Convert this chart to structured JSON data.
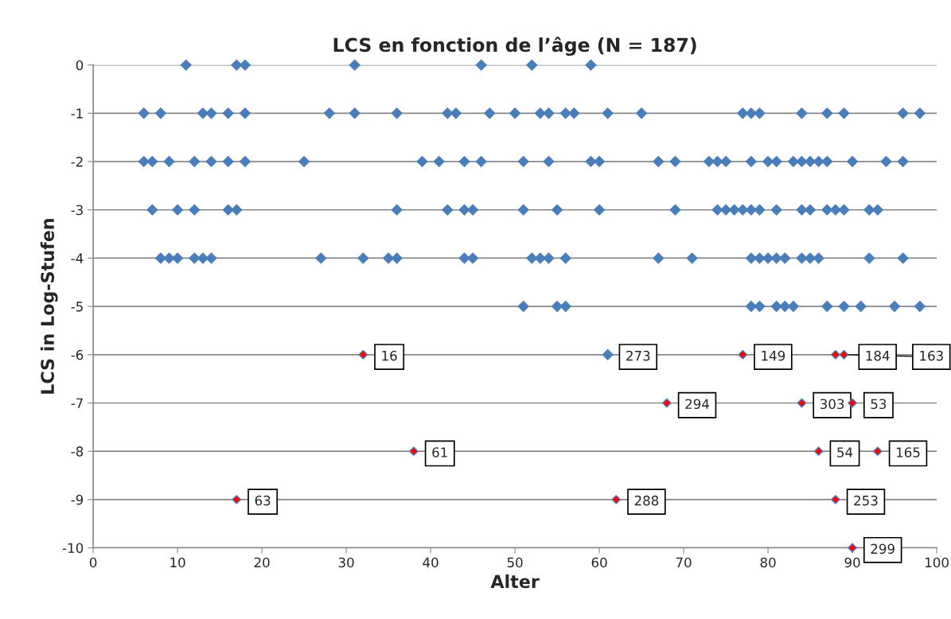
{
  "chart_data": {
    "type": "scatter",
    "title": "LCS en fonction de l’âge (N = 187)",
    "xlabel": "Alter",
    "ylabel": "LCS in Log-Stufen",
    "marker": "diamond",
    "grid": "y",
    "xlim": [
      0,
      100
    ],
    "xticks": [
      0,
      10,
      20,
      30,
      40,
      50,
      60,
      70,
      80,
      90,
      100
    ],
    "ylim": [
      -10,
      0
    ],
    "yticks": [
      0,
      -1,
      -2,
      -3,
      -4,
      -5,
      -6,
      -7,
      -8,
      -9,
      -10
    ],
    "series": [
      {
        "color": "#4a7ebb",
        "x": [
          11,
          17,
          18,
          31,
          46,
          52,
          59,
          6,
          8,
          13,
          14,
          16,
          18,
          28,
          31,
          36,
          42,
          43,
          47,
          50,
          53,
          54,
          56,
          57,
          61,
          65,
          77,
          78,
          79,
          84,
          87,
          89,
          96,
          98,
          6,
          7,
          9,
          12,
          14,
          16,
          18,
          25,
          39,
          41,
          44,
          46,
          51,
          54,
          59,
          60,
          67,
          69,
          73,
          74,
          75,
          78,
          80,
          81,
          83,
          84,
          85,
          86,
          87,
          90,
          94,
          96,
          7,
          10,
          12,
          16,
          17,
          36,
          42,
          44,
          45,
          51,
          55,
          60,
          69,
          74,
          75,
          76,
          77,
          78,
          79,
          81,
          84,
          85,
          87,
          88,
          89,
          92,
          93,
          8,
          9,
          10,
          12,
          13,
          14,
          27,
          32,
          35,
          36,
          44,
          45,
          52,
          53,
          54,
          56,
          67,
          71,
          78,
          79,
          80,
          81,
          82,
          84,
          85,
          86,
          92,
          96,
          51,
          55,
          56,
          78,
          79,
          81,
          82,
          83,
          87,
          89,
          91,
          95,
          98,
          61
        ],
        "values": [
          0,
          0,
          0,
          0,
          0,
          0,
          0,
          -1,
          -1,
          -1,
          -1,
          -1,
          -1,
          -1,
          -1,
          -1,
          -1,
          -1,
          -1,
          -1,
          -1,
          -1,
          -1,
          -1,
          -1,
          -1,
          -1,
          -1,
          -1,
          -1,
          -1,
          -1,
          -1,
          -1,
          -2,
          -2,
          -2,
          -2,
          -2,
          -2,
          -2,
          -2,
          -2,
          -2,
          -2,
          -2,
          -2,
          -2,
          -2,
          -2,
          -2,
          -2,
          -2,
          -2,
          -2,
          -2,
          -2,
          -2,
          -2,
          -2,
          -2,
          -2,
          -2,
          -2,
          -2,
          -2,
          -3,
          -3,
          -3,
          -3,
          -3,
          -3,
          -3,
          -3,
          -3,
          -3,
          -3,
          -3,
          -3,
          -3,
          -3,
          -3,
          -3,
          -3,
          -3,
          -3,
          -3,
          -3,
          -3,
          -3,
          -3,
          -3,
          -3,
          -4,
          -4,
          -4,
          -4,
          -4,
          -4,
          -4,
          -4,
          -4,
          -4,
          -4,
          -4,
          -4,
          -4,
          -4,
          -4,
          -4,
          -4,
          -4,
          -4,
          -4,
          -4,
          -4,
          -4,
          -4,
          -4,
          -4,
          -4,
          -5,
          -5,
          -5,
          -5,
          -5,
          -5,
          -5,
          -5,
          -5,
          -5,
          -5,
          -5,
          -5,
          -6
        ]
      },
      {
        "color": "#ff0000",
        "x": [
          32,
          77,
          88,
          89,
          68,
          84,
          90,
          38,
          86,
          93,
          17,
          62,
          88,
          90
        ],
        "values": [
          -6,
          -6,
          -6,
          -6,
          -7,
          -7,
          -7,
          -8,
          -8,
          -8,
          -9,
          -9,
          -9,
          -10
        ]
      }
    ],
    "annotations": [
      {
        "text": "16",
        "x": 32,
        "y": -6
      },
      {
        "text": "273",
        "x": 61,
        "y": -6
      },
      {
        "text": "149",
        "x": 77,
        "y": -6
      },
      {
        "text": "184",
        "x": 88,
        "y": -6
      },
      {
        "text": "163",
        "x": 89,
        "y": -6
      },
      {
        "text": "294",
        "x": 68,
        "y": -7
      },
      {
        "text": "303",
        "x": 84,
        "y": -7
      },
      {
        "text": "53",
        "x": 90,
        "y": -7
      },
      {
        "text": "61",
        "x": 38,
        "y": -8
      },
      {
        "text": "54",
        "x": 86,
        "y": -8
      },
      {
        "text": "165",
        "x": 93,
        "y": -8
      },
      {
        "text": "63",
        "x": 17,
        "y": -9
      },
      {
        "text": "288",
        "x": 62,
        "y": -9
      },
      {
        "text": "253",
        "x": 88,
        "y": -9
      },
      {
        "text": "299",
        "x": 90,
        "y": -10
      }
    ]
  }
}
